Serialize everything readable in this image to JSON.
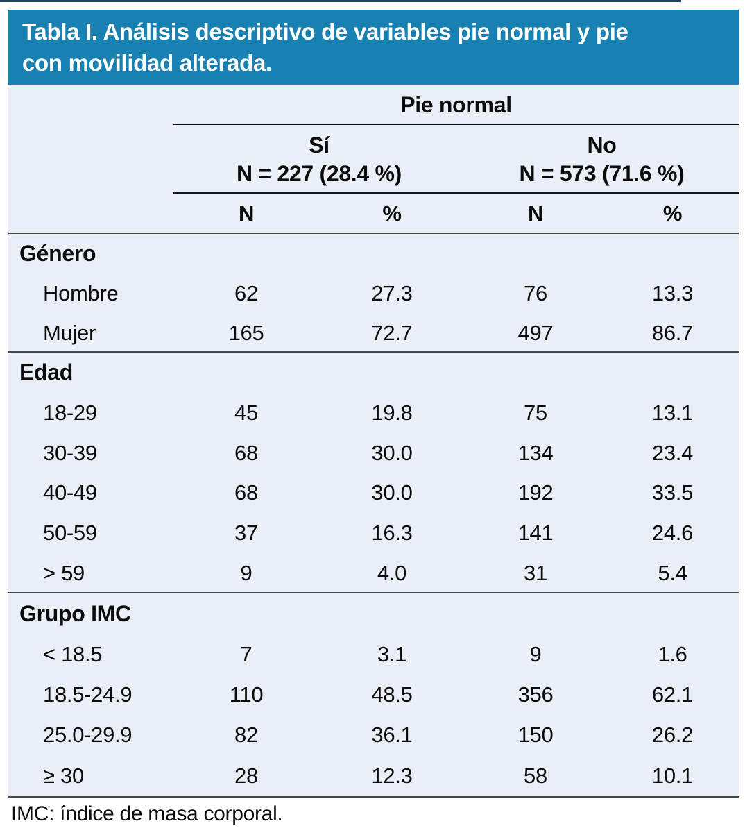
{
  "title": "Tabla I. Análisis descriptivo de variables pie normal y pie con movilidad alterada.",
  "title_lines": [
    "Tabla I. Análisis descriptivo de variables pie normal y pie",
    "con movilidad alterada."
  ],
  "table": {
    "group_header": "Pie normal",
    "subgroups": [
      {
        "label": "Sí",
        "n_label": "N = 227 (28.4 %)"
      },
      {
        "label": "No",
        "n_label": "N = 573 (71.6 %)"
      }
    ],
    "col_headers": [
      "N",
      "%",
      "N",
      "%"
    ],
    "sections": [
      {
        "name": "Género",
        "rows": [
          {
            "label": "Hombre",
            "values": [
              "62",
              "27.3",
              "76",
              "13.3"
            ]
          },
          {
            "label": "Mujer",
            "values": [
              "165",
              "72.7",
              "497",
              "86.7"
            ]
          }
        ]
      },
      {
        "name": "Edad",
        "rows": [
          {
            "label": "18-29",
            "values": [
              "45",
              "19.8",
              "75",
              "13.1"
            ]
          },
          {
            "label": "30-39",
            "values": [
              "68",
              "30.0",
              "134",
              "23.4"
            ]
          },
          {
            "label": "40-49",
            "values": [
              "68",
              "30.0",
              "192",
              "33.5"
            ]
          },
          {
            "label": "50-59",
            "values": [
              "37",
              "16.3",
              "141",
              "24.6"
            ]
          },
          {
            "label": "> 59",
            "values": [
              "9",
              "4.0",
              "31",
              "5.4"
            ]
          }
        ]
      },
      {
        "name": "Grupo IMC",
        "rows": [
          {
            "label": "< 18.5",
            "values": [
              "7",
              "3.1",
              "9",
              "1.6"
            ]
          },
          {
            "label": "18.5-24.9",
            "values": [
              "110",
              "48.5",
              "356",
              "62.1"
            ]
          },
          {
            "label": "25.0-29.9",
            "values": [
              "82",
              "36.1",
              "150",
              "26.2"
            ]
          },
          {
            "label": "≥ 30",
            "values": [
              "28",
              "12.3",
              "58",
              "10.1"
            ]
          }
        ]
      }
    ],
    "footnote": "IMC: índice de masa corporal."
  },
  "colors": {
    "header_bg": "#1981b1",
    "panel_bg": "#e9eef7",
    "title_text": "#ffffff",
    "body_text": "#0c0c0c",
    "rule_dark": "#141414",
    "rule_gray": "#474747",
    "top_accent": "#24425c"
  }
}
